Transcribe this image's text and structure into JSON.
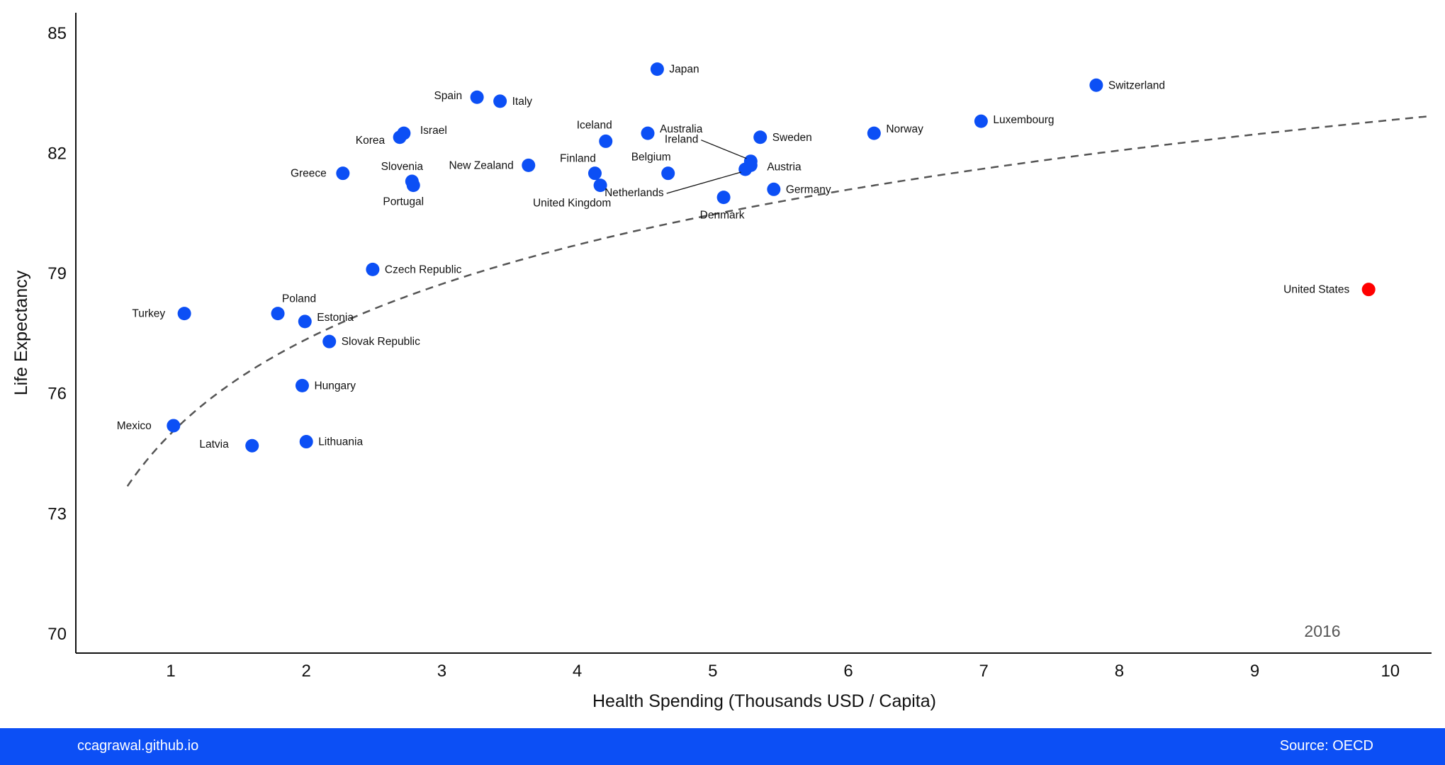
{
  "chart_data": {
    "type": "scatter",
    "xlabel": "Health Spending (Thousands USD / Capita)",
    "ylabel": "Life Expectancy",
    "xlim": [
      0.3,
      10.3
    ],
    "ylim": [
      69.5,
      85.5
    ],
    "xticks": [
      1,
      2,
      3,
      4,
      5,
      6,
      7,
      8,
      9,
      10
    ],
    "yticks": [
      70,
      73,
      76,
      79,
      82,
      85
    ],
    "grid": false,
    "year": "2016",
    "trend_line": "logarithmic fit (dashed)",
    "colors": {
      "point": "#0c4ff5",
      "highlight": "#ff0000",
      "trend": "#555555"
    },
    "points": [
      {
        "country": "Turkey",
        "x": 1.1,
        "y": 78.0
      },
      {
        "country": "Mexico",
        "x": 1.02,
        "y": 75.2
      },
      {
        "country": "Latvia",
        "x": 1.6,
        "y": 74.7
      },
      {
        "country": "Poland",
        "x": 1.79,
        "y": 78.0
      },
      {
        "country": "Estonia",
        "x": 1.99,
        "y": 77.8
      },
      {
        "country": "Hungary",
        "x": 1.97,
        "y": 76.2
      },
      {
        "country": "Lithuania",
        "x": 2.0,
        "y": 74.8
      },
      {
        "country": "Slovak Republic",
        "x": 2.17,
        "y": 77.3
      },
      {
        "country": "Greece",
        "x": 2.27,
        "y": 81.5
      },
      {
        "country": "Czech Republic",
        "x": 2.49,
        "y": 79.1
      },
      {
        "country": "Korea",
        "x": 2.69,
        "y": 82.4
      },
      {
        "country": "Israel",
        "x": 2.72,
        "y": 82.5
      },
      {
        "country": "Slovenia",
        "x": 2.78,
        "y": 81.3
      },
      {
        "country": "Portugal",
        "x": 2.79,
        "y": 81.2
      },
      {
        "country": "Spain",
        "x": 3.26,
        "y": 83.4
      },
      {
        "country": "Italy",
        "x": 3.43,
        "y": 83.3
      },
      {
        "country": "New Zealand",
        "x": 3.64,
        "y": 81.7
      },
      {
        "country": "Finland",
        "x": 4.13,
        "y": 81.5
      },
      {
        "country": "United Kingdom",
        "x": 4.17,
        "y": 81.2
      },
      {
        "country": "Iceland",
        "x": 4.21,
        "y": 82.3
      },
      {
        "country": "Japan",
        "x": 4.59,
        "y": 84.1
      },
      {
        "country": "Australia",
        "x": 4.52,
        "y": 82.5
      },
      {
        "country": "Belgium",
        "x": 4.67,
        "y": 81.5
      },
      {
        "country": "Denmark",
        "x": 5.08,
        "y": 80.9
      },
      {
        "country": "Ireland",
        "x": 5.28,
        "y": 81.8
      },
      {
        "country": "Netherlands",
        "x": 5.24,
        "y": 81.6
      },
      {
        "country": "Austria",
        "x": 5.28,
        "y": 81.7
      },
      {
        "country": "Sweden",
        "x": 5.35,
        "y": 82.4
      },
      {
        "country": "Germany",
        "x": 5.45,
        "y": 81.1
      },
      {
        "country": "Norway",
        "x": 6.19,
        "y": 82.5
      },
      {
        "country": "Luxembourg",
        "x": 6.98,
        "y": 82.8
      },
      {
        "country": "Switzerland",
        "x": 7.83,
        "y": 83.7
      },
      {
        "country": "United States",
        "x": 9.84,
        "y": 78.6,
        "highlight": true
      }
    ]
  },
  "footer": {
    "site": "ccagrawal.github.io",
    "source": "Source: OECD"
  }
}
